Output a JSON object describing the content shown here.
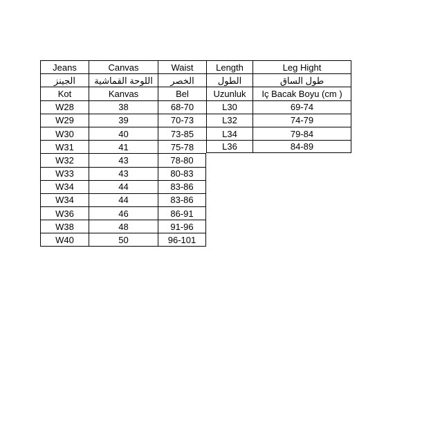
{
  "chart_data": {
    "type": "table",
    "header_rows": [
      [
        "Jeans",
        "Canvas",
        "Waist",
        "Length",
        "Leg Hight"
      ],
      [
        "الجينز",
        "اللوحة القماشية",
        "الخصر",
        "الطول",
        "طول الساق"
      ],
      [
        "Kot",
        "Kanvas",
        "Bel",
        "Uzunluk",
        "Iç Bacak Boyu (cm )"
      ]
    ],
    "full_rows": [
      [
        "W28",
        "38",
        "68-70",
        "L30",
        "69-74"
      ],
      [
        "W29",
        "39",
        "70-73",
        "L32",
        "74-79"
      ],
      [
        "W30",
        "40",
        "73-85",
        "L34",
        "79-84"
      ],
      [
        "W31",
        "41",
        "75-78",
        "L36",
        "84-89"
      ]
    ],
    "partial_rows": [
      [
        "W32",
        "43",
        "78-80"
      ],
      [
        "W33",
        "43",
        "80-83"
      ],
      [
        "W34",
        "44",
        "83-86"
      ],
      [
        "W34",
        "44",
        "83-86"
      ],
      [
        "W36",
        "46",
        "86-91"
      ],
      [
        "W38",
        "48",
        "91-96"
      ],
      [
        "W40",
        "50",
        "96-101"
      ]
    ],
    "layout": {
      "grid": "on",
      "columns_count": 5,
      "partial_columns_count": 3
    }
  },
  "colors": {
    "background": "#ffffff",
    "text": "#000000",
    "border": "#000000"
  }
}
